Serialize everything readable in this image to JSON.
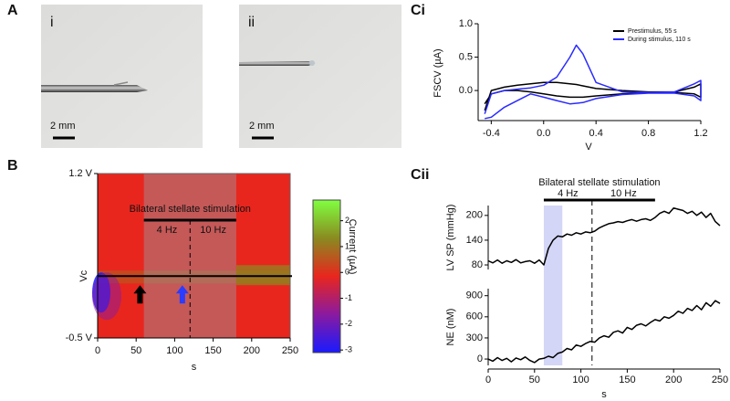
{
  "panel_labels": [
    "A",
    "B",
    "Ci",
    "Cii"
  ],
  "photos": [
    {
      "label": "i",
      "scale_bar": "2 mm"
    },
    {
      "label": "ii",
      "scale_bar": "2 mm"
    }
  ],
  "chart_data": [
    {
      "type": "heatmap",
      "x_label": "s",
      "y_label": "Vc",
      "xlim": [
        0,
        250
      ],
      "xticks": [
        0,
        50,
        100,
        150,
        200,
        250
      ],
      "ylim": [
        -0.5,
        1.2
      ],
      "yticks": [
        {
          "value": 1.2,
          "label": "1.2 V"
        },
        {
          "value": -0.5,
          "label": "-0.5 V"
        }
      ],
      "hline": 0.14,
      "shaded_span": [
        60,
        180
      ],
      "dashed_x": 120,
      "stimulation": {
        "label": "Bilateral stellate stimulation",
        "span": [
          60,
          180
        ],
        "segments": [
          "4 Hz",
          "10 Hz"
        ]
      },
      "arrows": [
        {
          "x": 55,
          "color": "#000000"
        },
        {
          "x": 110,
          "color": "#2a3cff"
        }
      ],
      "colorbar": {
        "label": "Current (µA)",
        "lim": [
          -3.1,
          2.8
        ],
        "ticks": [
          2,
          1,
          0,
          -1,
          -2,
          -3
        ],
        "colors": [
          "#1a1aff",
          "#8a1aa0",
          "#e8261e",
          "#8a8a20",
          "#80ff40"
        ]
      }
    },
    {
      "type": "line",
      "x_label": "V",
      "y_label": "FSCV (µA)",
      "xlim": [
        -0.5,
        1.2
      ],
      "xticks": [
        -0.4,
        {
          "value": 0,
          "label": "0.0"
        },
        0.4,
        0.8,
        1.2
      ],
      "ylim": [
        -0.45,
        1.0
      ],
      "yticks": [
        {
          "value": 0,
          "label": "0.0"
        },
        0.5,
        {
          "value": 1,
          "label": "1.0"
        }
      ],
      "legend": "upper right",
      "x": [
        -0.45,
        -0.4,
        -0.3,
        -0.2,
        -0.1,
        0,
        0.1,
        0.2,
        0.25,
        0.3,
        0.4,
        0.6,
        0.8,
        1.0,
        1.15,
        1.2,
        1.2,
        1.15,
        1.0,
        0.8,
        0.6,
        0.4,
        0.3,
        0.2,
        0.1,
        0,
        -0.1,
        -0.2,
        -0.3,
        -0.4,
        -0.45
      ],
      "series": [
        {
          "name": "Prestimulus, 55 s",
          "color": "#000000",
          "values": [
            -0.3,
            0,
            0.05,
            0.08,
            0.1,
            0.12,
            0.12,
            0.1,
            0.09,
            0.07,
            0.03,
            0,
            -0.02,
            -0.02,
            0.05,
            0.1,
            -0.1,
            -0.05,
            -0.03,
            -0.03,
            -0.05,
            -0.08,
            -0.1,
            -0.1,
            -0.08,
            -0.05,
            -0.02,
            0,
            0,
            -0.05,
            -0.2
          ]
        },
        {
          "name": "During stimulus, 110 s",
          "color": "#2a2aff",
          "values": [
            -0.35,
            -0.05,
            0,
            0.02,
            0.04,
            0.08,
            0.2,
            0.5,
            0.68,
            0.55,
            0.12,
            -0.02,
            -0.03,
            -0.02,
            0.1,
            0.15,
            -0.15,
            -0.08,
            -0.04,
            -0.04,
            -0.06,
            -0.12,
            -0.18,
            -0.2,
            -0.15,
            -0.1,
            -0.05,
            -0.15,
            -0.25,
            -0.4,
            -0.42
          ]
        }
      ]
    },
    {
      "type": "line",
      "y_label": "LV SP (mmHg)",
      "xlim": [
        0,
        250
      ],
      "ylim": [
        69,
        224
      ],
      "yticks": [
        80,
        140,
        200
      ],
      "shaded_span": [
        60,
        80
      ],
      "shade_color": "#c8ccf4",
      "dashed_x": 112,
      "stimulation": {
        "label": "Bilateral stellate stimulation",
        "span": [
          60,
          180
        ],
        "segments": [
          "4 Hz",
          "10 Hz"
        ]
      },
      "x": [
        0,
        5,
        10,
        15,
        20,
        25,
        30,
        35,
        40,
        45,
        50,
        55,
        60,
        65,
        70,
        75,
        80,
        85,
        90,
        95,
        100,
        105,
        110,
        115,
        120,
        125,
        130,
        135,
        140,
        145,
        150,
        155,
        160,
        165,
        170,
        175,
        180,
        185,
        190,
        195,
        200,
        205,
        210,
        215,
        220,
        225,
        230,
        235,
        240,
        245,
        250
      ],
      "series": [
        {
          "color": "#000000",
          "values": [
            90,
            85,
            92,
            84,
            90,
            86,
            93,
            85,
            88,
            90,
            84,
            92,
            80,
            120,
            140,
            150,
            148,
            155,
            152,
            158,
            155,
            160,
            158,
            162,
            170,
            175,
            180,
            182,
            185,
            183,
            187,
            190,
            186,
            190,
            192,
            188,
            195,
            205,
            210,
            205,
            218,
            215,
            212,
            205,
            210,
            200,
            208,
            195,
            205,
            185,
            175
          ]
        }
      ]
    },
    {
      "type": "line",
      "y_label": "NE (nM)",
      "x_label": "s",
      "xlim": [
        0,
        250
      ],
      "xticks": [
        0,
        50,
        100,
        150,
        200,
        250
      ],
      "ylim": [
        -90,
        1000
      ],
      "yticks": [
        0,
        300,
        600,
        900
      ],
      "x": [
        0,
        5,
        10,
        15,
        20,
        25,
        30,
        35,
        40,
        45,
        50,
        55,
        60,
        65,
        70,
        75,
        80,
        85,
        90,
        95,
        100,
        105,
        110,
        115,
        120,
        125,
        130,
        135,
        140,
        145,
        150,
        155,
        160,
        165,
        170,
        175,
        180,
        185,
        190,
        195,
        200,
        205,
        210,
        215,
        220,
        225,
        230,
        235,
        240,
        245,
        250
      ],
      "series": [
        {
          "color": "#000000",
          "values": [
            0,
            -30,
            20,
            -20,
            10,
            -40,
            15,
            -10,
            30,
            -20,
            -50,
            0,
            10,
            40,
            20,
            80,
            100,
            150,
            130,
            200,
            180,
            220,
            250,
            240,
            300,
            330,
            310,
            380,
            400,
            370,
            450,
            420,
            480,
            500,
            470,
            520,
            560,
            540,
            600,
            580,
            620,
            680,
            650,
            720,
            690,
            760,
            700,
            800,
            750,
            830,
            790
          ]
        }
      ]
    }
  ]
}
